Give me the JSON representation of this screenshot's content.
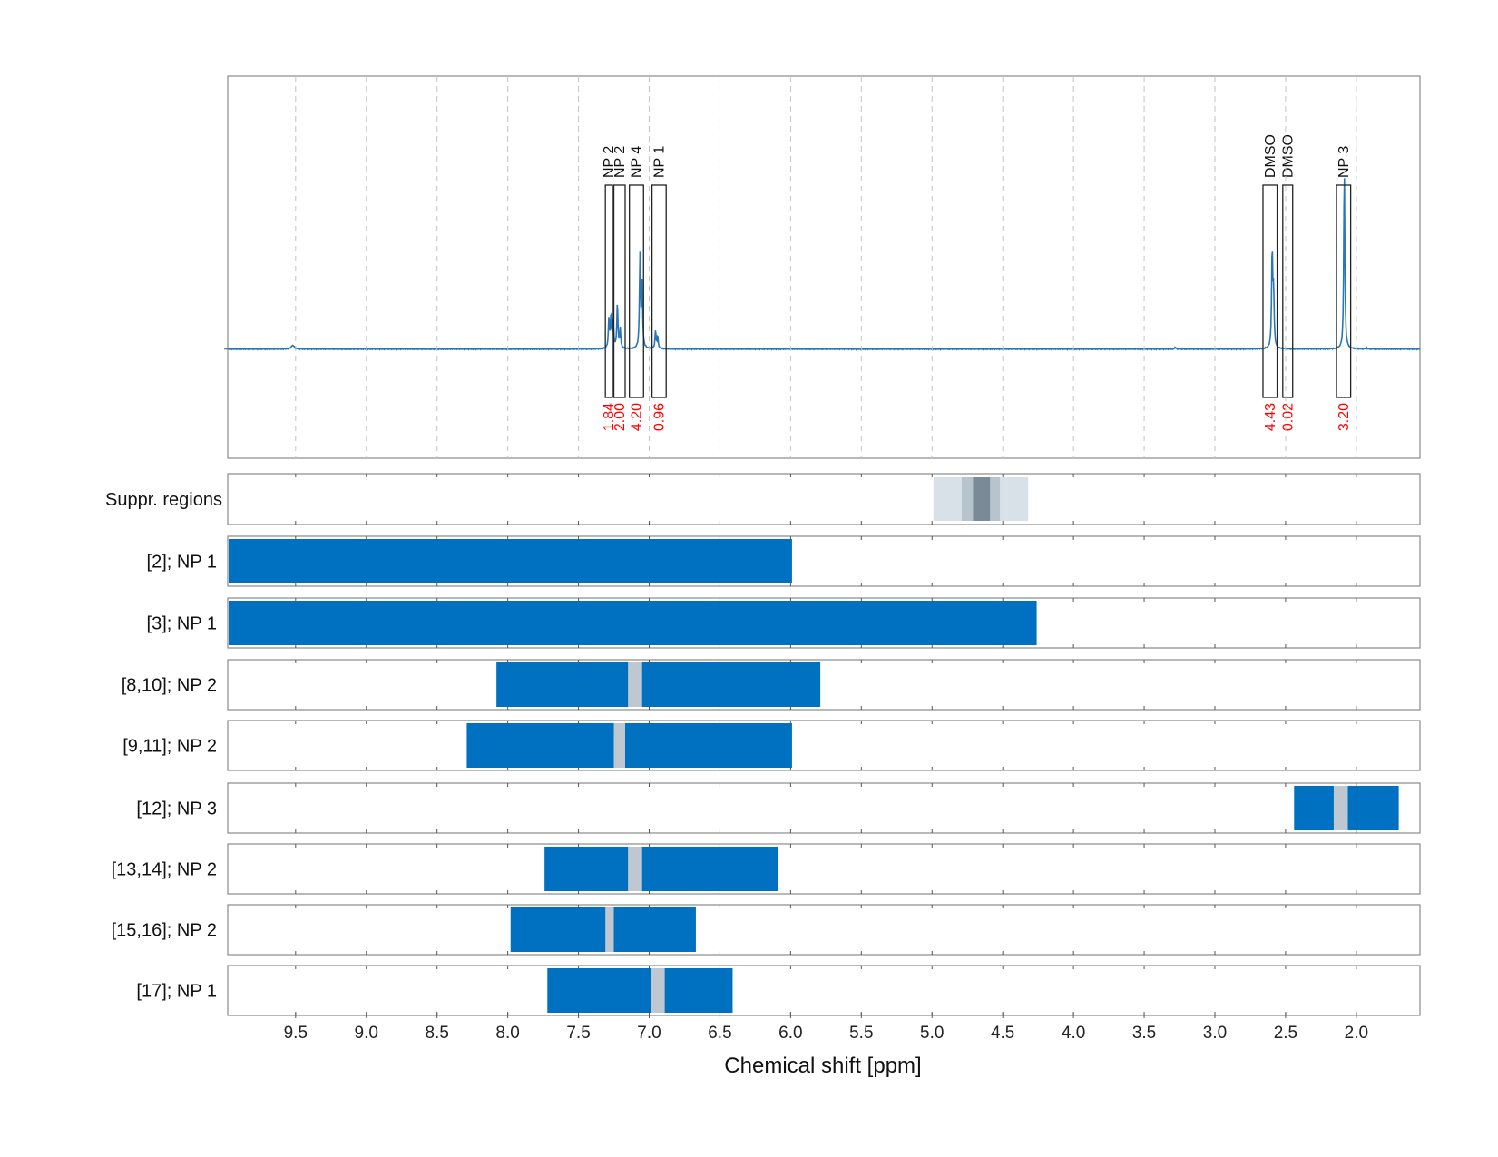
{
  "chart_data": {
    "type": "line",
    "xlabel": "Chemical shift [ppm]",
    "xlim": [
      9.98,
      1.55
    ],
    "x_reversed": true,
    "x_ticks": [
      {
        "value": 9.5,
        "label": "9.5"
      },
      {
        "value": 9.0,
        "label": "9.0"
      },
      {
        "value": 8.5,
        "label": "8.5"
      },
      {
        "value": 8.0,
        "label": "8.0"
      },
      {
        "value": 7.5,
        "label": "7.5"
      },
      {
        "value": 7.0,
        "label": "7.0"
      },
      {
        "value": 6.5,
        "label": "6.5"
      },
      {
        "value": 6.0,
        "label": "6.0"
      },
      {
        "value": 5.5,
        "label": "5.5"
      },
      {
        "value": 5.0,
        "label": "5.0"
      },
      {
        "value": 4.5,
        "label": "4.5"
      },
      {
        "value": 4.0,
        "label": "4.0"
      },
      {
        "value": 3.5,
        "label": "3.5"
      },
      {
        "value": 3.0,
        "label": "3.0"
      },
      {
        "value": 2.5,
        "label": "2.5"
      },
      {
        "value": 2.0,
        "label": "2.0"
      }
    ],
    "grid": true,
    "colors": {
      "spectrum": "#2878b8",
      "bar": "#0070c0",
      "gap": "#bfc8d0",
      "integral_text": "#ff0000",
      "suppr_light": "#d9e1e8",
      "suppr_mid": "#b7c3cd",
      "suppr_dark": "#7b8a97"
    },
    "spectrum": {
      "baseline": 0,
      "ylim": [
        -0.4,
        1.0
      ],
      "peaks": [
        {
          "x": 9.52,
          "height": 0.014,
          "width": 0.012
        },
        {
          "x": 7.285,
          "height": 0.11,
          "width": 0.0045
        },
        {
          "x": 7.27,
          "height": 0.12,
          "width": 0.0045
        },
        {
          "x": 7.255,
          "height": 0.1,
          "width": 0.0045
        },
        {
          "x": 7.225,
          "height": 0.165,
          "width": 0.0045
        },
        {
          "x": 7.205,
          "height": 0.07,
          "width": 0.0045
        },
        {
          "x": 7.065,
          "height": 0.34,
          "width": 0.0045
        },
        {
          "x": 7.05,
          "height": 0.23,
          "width": 0.0045
        },
        {
          "x": 6.955,
          "height": 0.065,
          "width": 0.0045
        },
        {
          "x": 6.94,
          "height": 0.045,
          "width": 0.0045
        },
        {
          "x": 3.28,
          "height": 0.008,
          "width": 0.004
        },
        {
          "x": 2.595,
          "height": 0.36,
          "width": 0.0045
        },
        {
          "x": 2.585,
          "height": 0.2,
          "width": 0.0045
        },
        {
          "x": 2.085,
          "height": 0.665,
          "width": 0.0045
        },
        {
          "x": 1.93,
          "height": 0.006,
          "width": 0.004
        }
      ]
    },
    "annotations": [
      {
        "label": "NP 2",
        "integral": "1.84",
        "x_left": 7.31,
        "x_right": 7.26
      },
      {
        "label": "NP 2",
        "integral": "2.00",
        "x_left": 7.25,
        "x_right": 7.17
      },
      {
        "label": "NP 4",
        "integral": "4.20",
        "x_left": 7.14,
        "x_right": 7.04
      },
      {
        "label": "NP 1",
        "integral": "0.96",
        "x_left": 6.98,
        "x_right": 6.88
      },
      {
        "label": "DMSO",
        "integral": "4.43",
        "x_left": 2.66,
        "x_right": 2.56
      },
      {
        "label": "DMSO",
        "integral": "0.02",
        "x_left": 2.52,
        "x_right": 2.45
      },
      {
        "label": "NP 3",
        "integral": "3.20",
        "x_left": 2.14,
        "x_right": 2.04
      }
    ],
    "suppression": {
      "label": "Suppr. regions",
      "bands": [
        {
          "x_left": 4.99,
          "x_right": 4.32,
          "shade": "suppr_light"
        },
        {
          "x_left": 4.79,
          "x_right": 4.52,
          "shade": "suppr_mid"
        },
        {
          "x_left": 4.71,
          "x_right": 4.59,
          "shade": "suppr_dark"
        }
      ]
    },
    "rows": [
      {
        "label": "[2]; NP 1",
        "x_left": 9.98,
        "x_right": 5.99,
        "gaps": []
      },
      {
        "label": "[3]; NP 1",
        "x_left": 9.98,
        "x_right": 4.26,
        "gaps": []
      },
      {
        "label": "[8,10]; NP 2",
        "x_left": 8.08,
        "x_right": 5.79,
        "gaps": [
          [
            7.15,
            7.05
          ]
        ]
      },
      {
        "label": "[9,11]; NP 2",
        "x_left": 8.29,
        "x_right": 5.99,
        "gaps": [
          [
            7.25,
            7.17
          ]
        ]
      },
      {
        "label": "[12]; NP 3",
        "x_left": 2.44,
        "x_right": 1.7,
        "gaps": [
          [
            2.16,
            2.06
          ]
        ]
      },
      {
        "label": "[13,14]; NP 2",
        "x_left": 7.74,
        "x_right": 6.09,
        "gaps": [
          [
            7.15,
            7.05
          ]
        ]
      },
      {
        "label": "[15,16]; NP 2",
        "x_left": 7.98,
        "x_right": 6.67,
        "gaps": [
          [
            7.31,
            7.25
          ]
        ]
      },
      {
        "label": "[17]; NP 1",
        "x_left": 7.72,
        "x_right": 6.41,
        "gaps": [
          [
            6.99,
            6.89
          ]
        ]
      }
    ]
  }
}
